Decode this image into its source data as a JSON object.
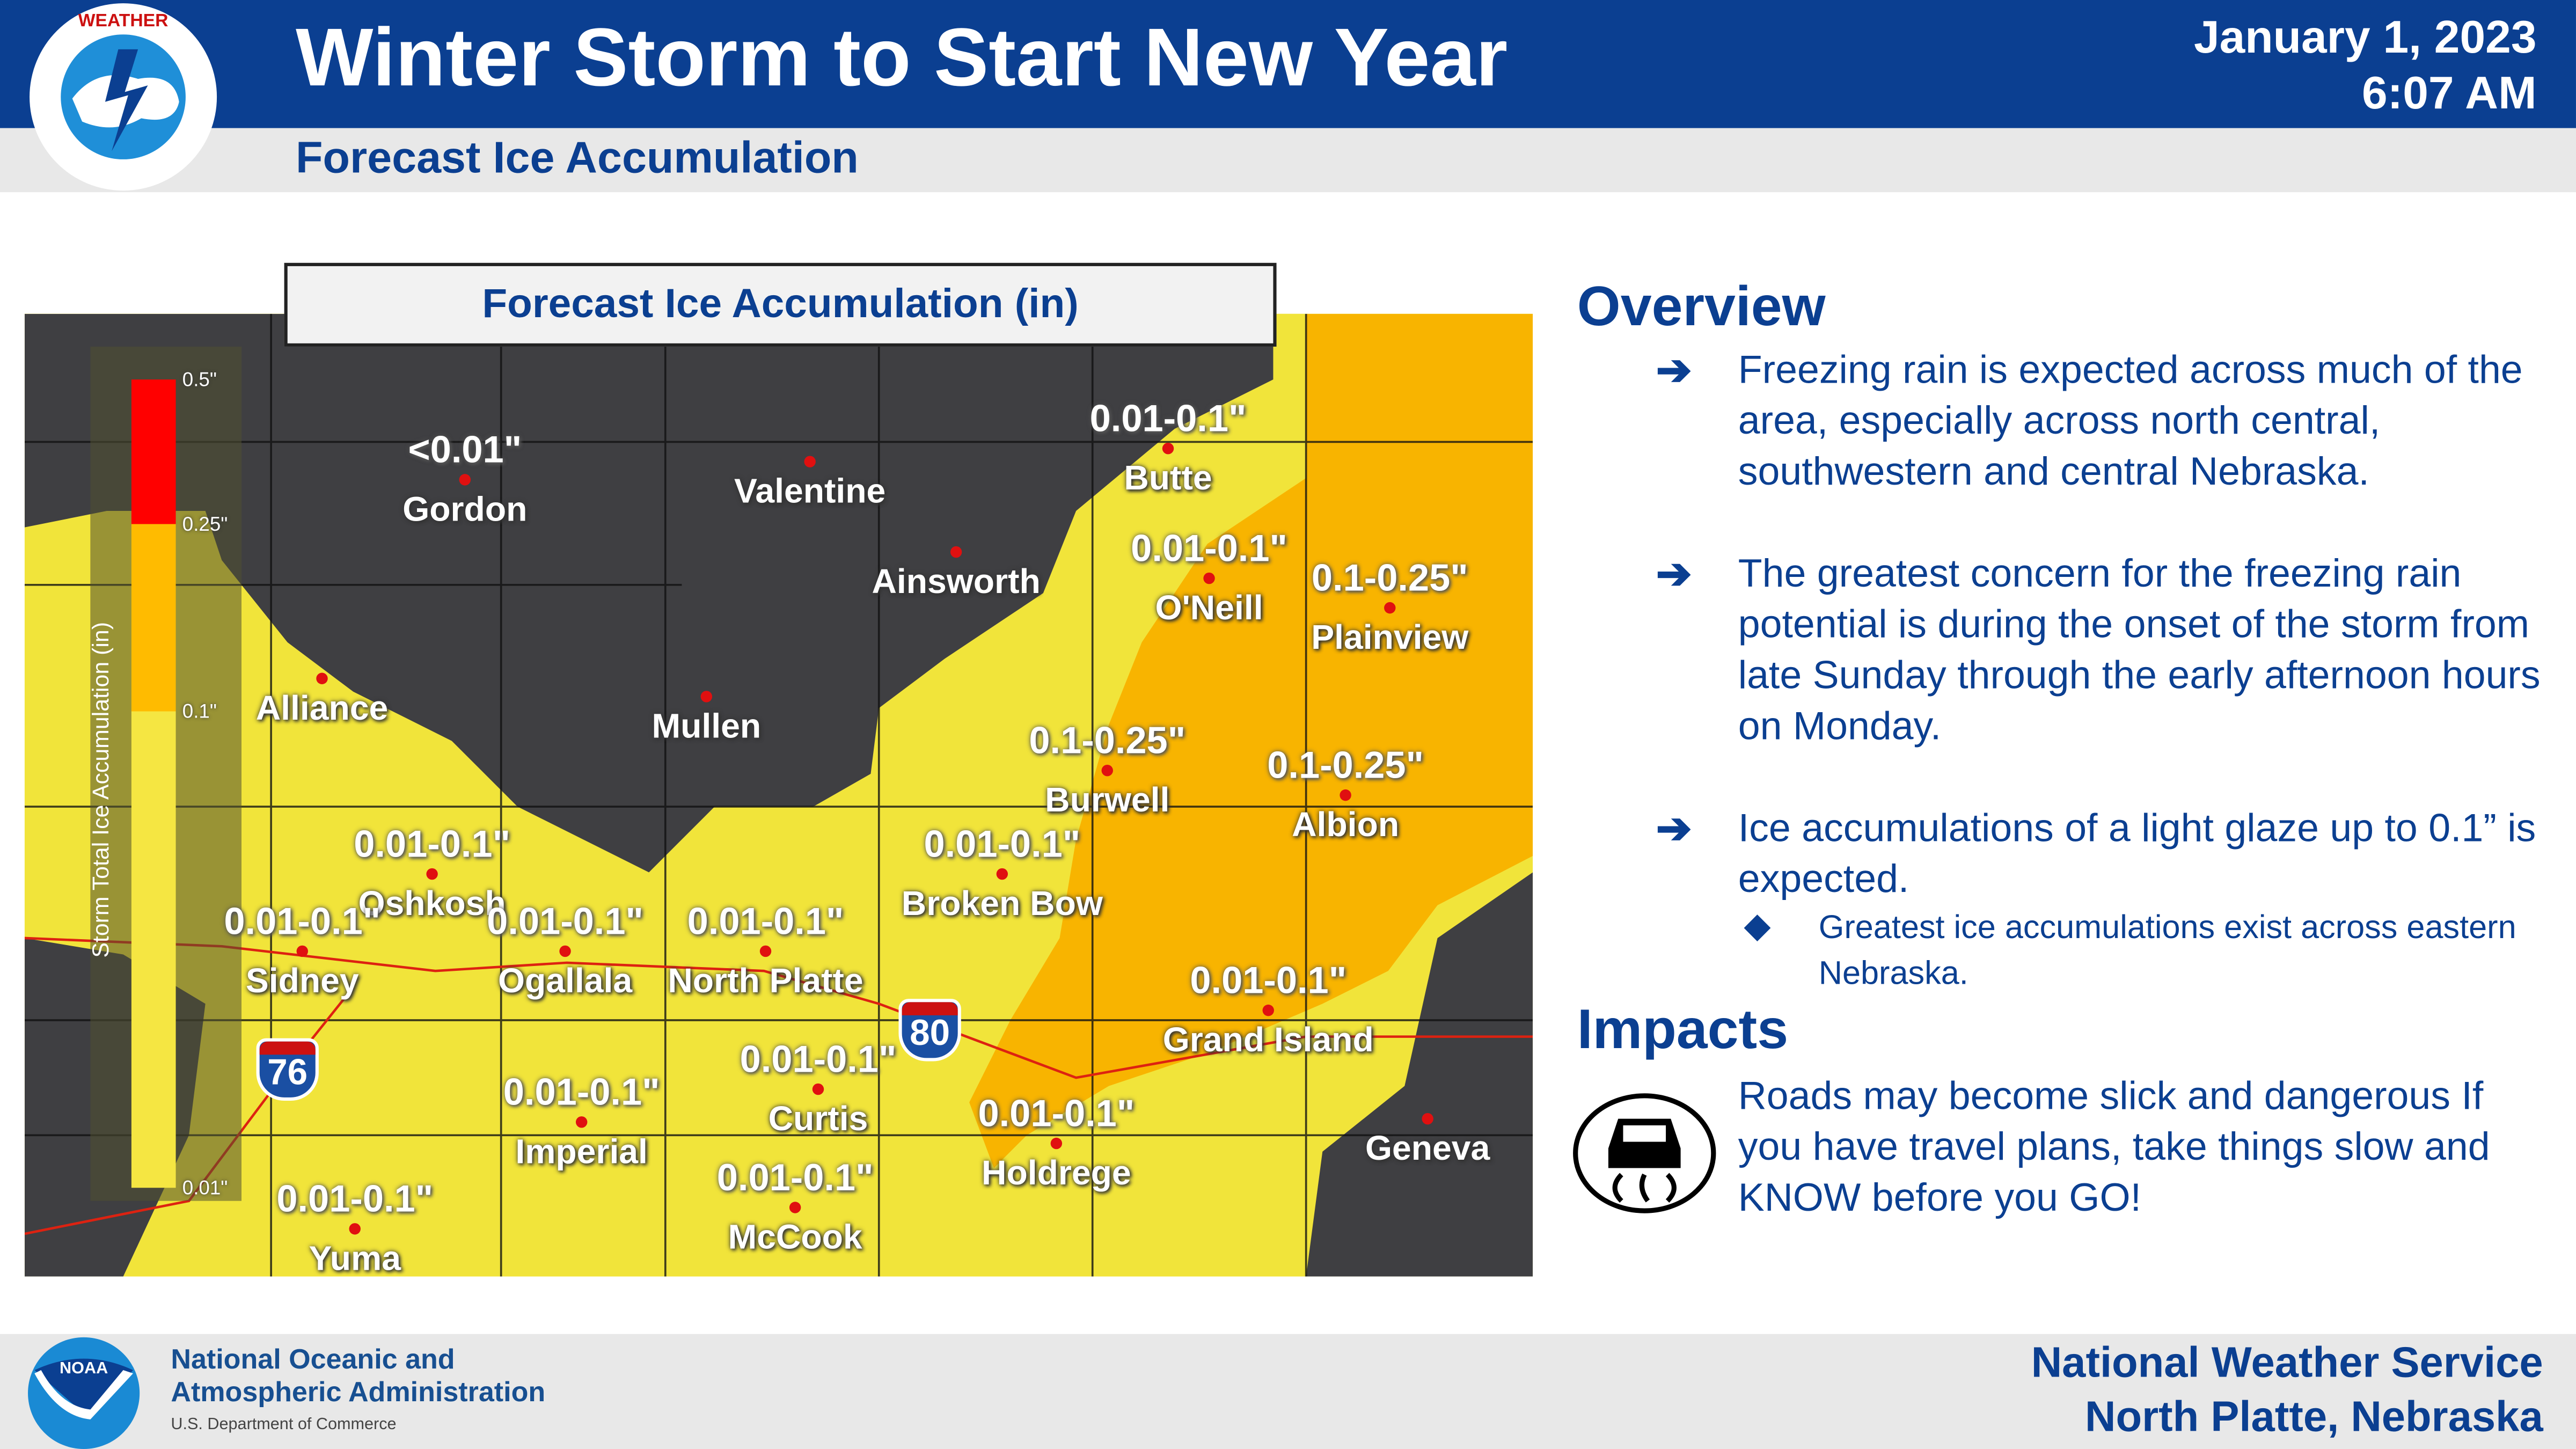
{
  "header": {
    "title": "Winter Storm to Start New Year",
    "subtitle": "Forecast Ice Accumulation",
    "date": "January 1, 2023",
    "time": "6:07 AM",
    "logo_text": "NATIONAL WEATHER SERVICE"
  },
  "map": {
    "title": "Forecast Ice Accumulation (in)",
    "legend": {
      "title": "Storm Total Ice Accumulation (in)",
      "ticks": [
        "0.5\"",
        "0.25\"",
        "0.1\"",
        "0.01\""
      ],
      "colors": {
        "0.25-0.5": "#ff0000",
        "0.1-0.25": "#ffbb00",
        "0.01-0.1": "#f5e642"
      }
    },
    "colors": {
      "none": "#3f3f42",
      "light": "#f1e43a",
      "moderate": "#f8b400"
    },
    "locations": [
      {
        "city": "Gordon",
        "range": "<0.01\""
      },
      {
        "city": "Valentine",
        "range": ""
      },
      {
        "city": "Ainsworth",
        "range": ""
      },
      {
        "city": "Butte",
        "range": "0.01-0.1\""
      },
      {
        "city": "O'Neill",
        "range": "0.01-0.1\""
      },
      {
        "city": "Plainview",
        "range": "0.1-0.25\""
      },
      {
        "city": "Alliance",
        "range": ""
      },
      {
        "city": "Mullen",
        "range": ""
      },
      {
        "city": "Burwell",
        "range": "0.1-0.25\""
      },
      {
        "city": "Albion",
        "range": "0.1-0.25\""
      },
      {
        "city": "Oshkosh",
        "range": "0.01-0.1\""
      },
      {
        "city": "Broken Bow",
        "range": "0.01-0.1\""
      },
      {
        "city": "Sidney",
        "range": "0.01-0.1\""
      },
      {
        "city": "Ogallala",
        "range": "0.01-0.1\""
      },
      {
        "city": "North Platte",
        "range": "0.01-0.1\""
      },
      {
        "city": "Grand Island",
        "range": "0.01-0.1\""
      },
      {
        "city": "Curtis",
        "range": "0.01-0.1\""
      },
      {
        "city": "Imperial",
        "range": "0.01-0.1\""
      },
      {
        "city": "Holdrege",
        "range": "0.01-0.1\""
      },
      {
        "city": "Geneva",
        "range": ""
      },
      {
        "city": "McCook",
        "range": "0.01-0.1\""
      },
      {
        "city": "Yuma",
        "range": "0.01-0.1\""
      }
    ],
    "interstates": [
      "80",
      "76"
    ]
  },
  "overview": {
    "heading": "Overview",
    "bullets": [
      "Freezing rain is expected across much of the area, especially across north central, southwestern and central Nebraska.",
      "The greatest concern for the freezing rain potential is during the onset of the storm from late Sunday through the early afternoon hours on Monday.",
      "Ice accumulations of a light glaze up to 0.1” is expected."
    ],
    "sub_bullet": "Greatest ice accumulations exist across eastern Nebraska."
  },
  "impacts": {
    "heading": "Impacts",
    "icon": "slippery-road-icon",
    "text": "Roads may become slick and dangerous If you have travel plans, take things slow and KNOW before you GO!"
  },
  "footer": {
    "noaa_line1": "National Oceanic and",
    "noaa_line2": "Atmospheric Administration",
    "department": "U.S. Department of Commerce",
    "noaa_logo_text": "NOAA",
    "office_line1": "National Weather Service",
    "office_line2": "North Platte, Nebraska"
  }
}
